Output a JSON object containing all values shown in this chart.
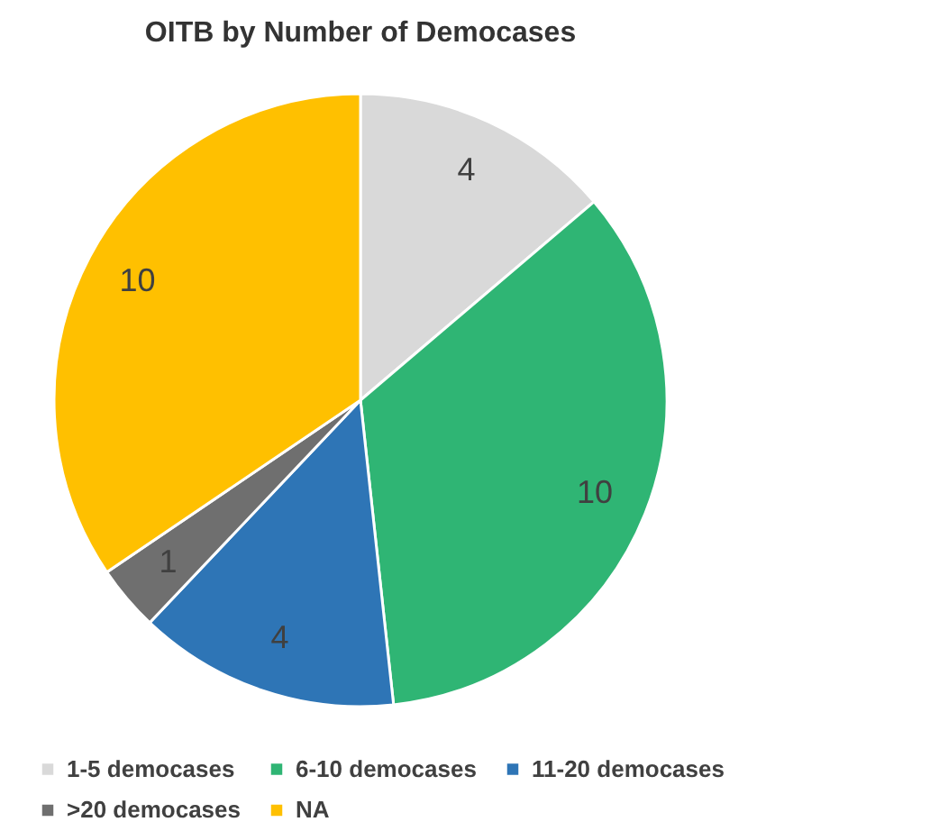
{
  "chart_data": {
    "type": "pie",
    "title": "OITB by Number of Democases",
    "categories": [
      "1-5 democases",
      "6-10 democases",
      "11-20 democases",
      ">20 democases",
      "NA"
    ],
    "values": [
      4,
      10,
      4,
      1,
      10
    ],
    "colors": [
      "#d9d9d9",
      "#2fb574",
      "#2e75b6",
      "#6f6f6f",
      "#ffc000"
    ],
    "data_labels": true,
    "legend": "bottom"
  }
}
